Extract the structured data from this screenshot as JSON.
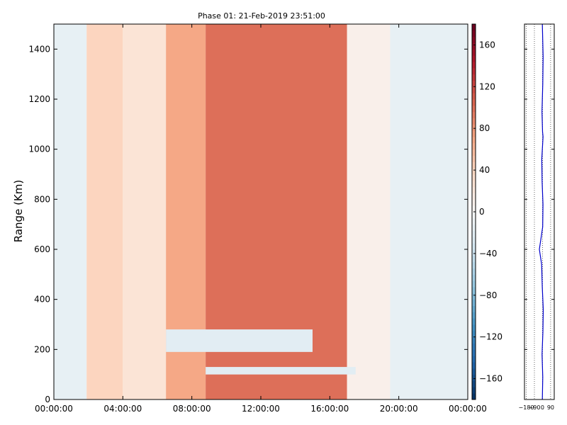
{
  "chart_data": [
    {
      "type": "heatmap",
      "title": "Phase 01: 21-Feb-2019 23:51:00",
      "xlabel": "",
      "ylabel": "Range (Km)",
      "x_ticks": [
        "00:00:00",
        "04:00:00",
        "08:00:00",
        "12:00:00",
        "16:00:00",
        "20:00:00",
        "00:00:00"
      ],
      "x_range_hours": [
        0,
        24
      ],
      "y_ticks": [
        "0",
        "200",
        "400",
        "600",
        "800",
        "1000",
        "1200",
        "1400"
      ],
      "ylim": [
        0,
        1500
      ],
      "colormap": "RdBu_r",
      "clim": [
        -180,
        180
      ],
      "colorbar_ticks": [
        "−160",
        "−120",
        "−80",
        "−40",
        "0",
        "40",
        "80",
        "120",
        "160"
      ],
      "regions": [
        {
          "hours": [
            0.0,
            1.9
          ],
          "range_km": [
            0,
            1500
          ],
          "phase_deg": -15
        },
        {
          "hours": [
            1.9,
            4.0
          ],
          "range_km": [
            0,
            1500
          ],
          "phase_deg": 40
        },
        {
          "hours": [
            4.0,
            6.5
          ],
          "range_km": [
            0,
            1500
          ],
          "phase_deg": 25
        },
        {
          "hours": [
            6.5,
            8.8
          ],
          "range_km": [
            0,
            1500
          ],
          "phase_deg": 70
        },
        {
          "hours": [
            8.8,
            17.0
          ],
          "range_km": [
            0,
            1500
          ],
          "phase_deg": 100
        },
        {
          "hours": [
            17.0,
            19.5
          ],
          "range_km": [
            0,
            1500
          ],
          "phase_deg": 10
        },
        {
          "hours": [
            19.5,
            24.0
          ],
          "range_km": [
            0,
            1500
          ],
          "phase_deg": -15
        },
        {
          "hours": [
            8.8,
            17.5
          ],
          "range_km": [
            100,
            130
          ],
          "phase_deg": -20,
          "note": "horizontal band"
        },
        {
          "hours": [
            6.5,
            15.0
          ],
          "range_km": [
            190,
            280
          ],
          "phase_deg": -20,
          "note": "diagonal band"
        }
      ]
    },
    {
      "type": "line",
      "title": "",
      "xlabel": "",
      "ylabel": "",
      "x_ticks": [
        "−180",
        "−90",
        "0",
        "90"
      ],
      "xlim": [
        -200,
        130
      ],
      "ylim": [
        0,
        1500
      ],
      "series": [
        {
          "x": [
            -2,
            3,
            -5,
            4,
            8,
            -3,
            -10,
            -35,
            2,
            5,
            -4,
            -8,
            6,
            0,
            -6,
            3,
            7,
            -2
          ],
          "y": [
            0,
            90,
            180,
            270,
            360,
            450,
            540,
            600,
            690,
            780,
            870,
            960,
            1050,
            1070,
            1150,
            1260,
            1370,
            1500
          ],
          "color": "#0000cc"
        }
      ]
    }
  ]
}
